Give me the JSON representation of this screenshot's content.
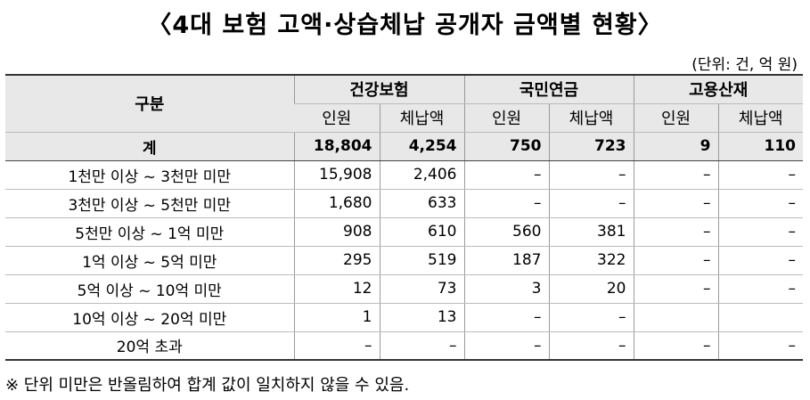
{
  "title": "〈4대 보험 고액·상습체납 공개자 금액별 현황〉",
  "unit": "(단위: 건, 억 원)",
  "header": {
    "category": "구분",
    "groups": [
      "건강보험",
      "국민연금",
      "고용산재"
    ],
    "sub": [
      "인원",
      "체납액",
      "인원",
      "체납액",
      "인원",
      "체납액"
    ]
  },
  "total": {
    "label": "계",
    "values": [
      "18,804",
      "4,254",
      "750",
      "723",
      "9",
      "110"
    ]
  },
  "rows": [
    {
      "label": "1천만 이상 ~ 3천만 미만",
      "values": [
        "15,908",
        "2,406",
        "–",
        "–",
        "–",
        "–"
      ]
    },
    {
      "label": "3천만 이상 ~ 5천만 미만",
      "values": [
        "1,680",
        "633",
        "–",
        "–",
        "–",
        "–"
      ]
    },
    {
      "label": "5천만 이상 ~ 1억 미만",
      "values": [
        "908",
        "610",
        "560",
        "381",
        "–",
        "–"
      ]
    },
    {
      "label": "1억 이상 ~ 5억 미만",
      "values": [
        "295",
        "519",
        "187",
        "322",
        "–",
        "–"
      ]
    },
    {
      "label": "5억 이상 ~ 10억 미만",
      "values": [
        "12",
        "73",
        "3",
        "20",
        "–",
        "–"
      ]
    },
    {
      "label": "10억 이상 ~ 20억 미만",
      "values": [
        "1",
        "13",
        "–",
        "–",
        "",
        ""
      ]
    },
    {
      "label": "20억 초과",
      "values": [
        "–",
        "–",
        "–",
        "–",
        "–",
        "–"
      ]
    }
  ],
  "note": "※ 단위 미만은 반올림하여 합계 값이 일치하지 않을 수 있음."
}
